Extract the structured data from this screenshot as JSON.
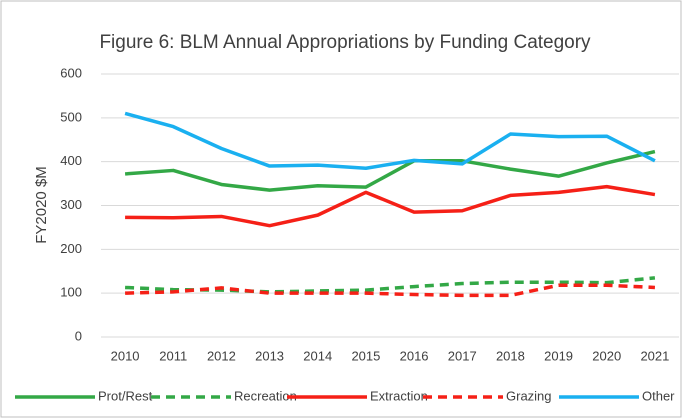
{
  "chart_data": {
    "type": "line",
    "title": "Figure 6: BLM Annual Appropriations by Funding Category",
    "y_label": "FY2020 $M",
    "categories": [
      "2010",
      "2011",
      "2012",
      "2013",
      "2014",
      "2015",
      "2016",
      "2017",
      "2018",
      "2019",
      "2020",
      "2021"
    ],
    "ylim": [
      0,
      600
    ],
    "yticks": [
      0,
      100,
      200,
      300,
      400,
      500,
      600
    ],
    "grid": true,
    "legend": "bottom",
    "series": [
      {
        "name": "Prot/Rest",
        "color": "#33a846",
        "dashed": false,
        "values": [
          372,
          380,
          348,
          335,
          345,
          342,
          402,
          402,
          383,
          367,
          397,
          423
        ]
      },
      {
        "name": "Recreation",
        "color": "#33a846",
        "dashed": true,
        "values": [
          113,
          108,
          107,
          103,
          105,
          107,
          115,
          122,
          125,
          125,
          124,
          135
        ]
      },
      {
        "name": "Extraction",
        "color": "#f52017",
        "dashed": false,
        "values": [
          273,
          272,
          275,
          254,
          278,
          330,
          285,
          288,
          323,
          330,
          343,
          325
        ]
      },
      {
        "name": "Grazing",
        "color": "#f52017",
        "dashed": true,
        "values": [
          100,
          103,
          112,
          100,
          100,
          100,
          97,
          95,
          95,
          118,
          118,
          113
        ]
      },
      {
        "name": "Other",
        "color": "#1ab0f0",
        "dashed": false,
        "values": [
          510,
          480,
          430,
          390,
          392,
          385,
          403,
          395,
          463,
          457,
          458,
          402
        ]
      }
    ]
  }
}
